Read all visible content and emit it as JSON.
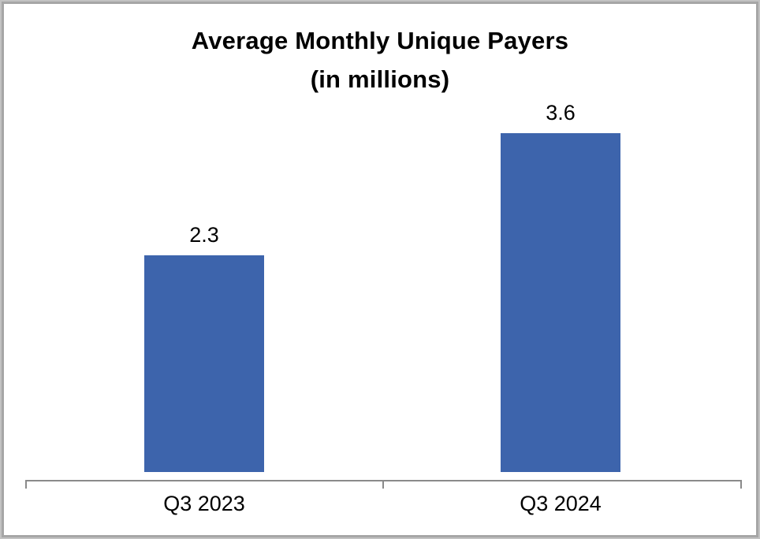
{
  "chart_data": {
    "type": "bar",
    "title": "Average Monthly Unique Payers",
    "subtitle": "(in millions)",
    "categories": [
      "Q3 2023",
      "Q3 2024"
    ],
    "values": [
      2.3,
      3.6
    ],
    "data_labels": [
      "2.3",
      "3.6"
    ],
    "xlabel": "",
    "ylabel": "",
    "ylim": [
      0,
      3.95
    ],
    "grid": false,
    "legend_position": "none",
    "bar_color": "#3d64ac",
    "axis_color": "#8a8a8a",
    "title_color": "#000000"
  }
}
